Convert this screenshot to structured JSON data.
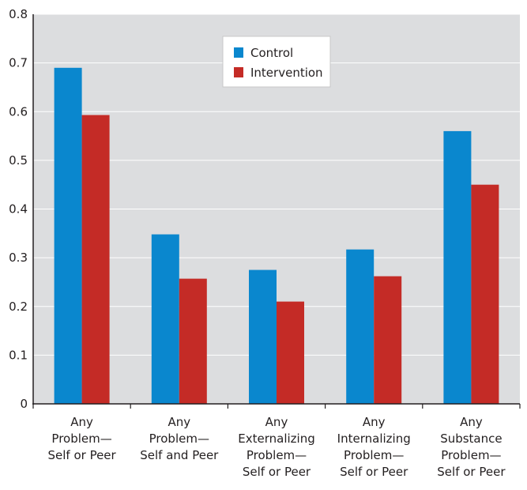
{
  "chart_data": {
    "type": "bar",
    "title": "",
    "xlabel": "",
    "ylabel": "",
    "ylim": [
      0,
      0.8
    ],
    "yticks": [
      "0",
      "0.1",
      "0.2",
      "0.3",
      "0.4",
      "0.5",
      "0.6",
      "0.7",
      "0.8"
    ],
    "grid": true,
    "legend_position": "top-center",
    "categories": [
      [
        "Any",
        "Problem—",
        "Self or Peer"
      ],
      [
        "Any",
        "Problem—",
        "Self and Peer"
      ],
      [
        "Any",
        "Externalizing",
        "Problem—",
        "Self or Peer"
      ],
      [
        "Any",
        "Internalizing",
        "Problem—",
        "Self or Peer"
      ],
      [
        "Any",
        "Substance",
        "Problem—",
        "Self or Peer"
      ]
    ],
    "series": [
      {
        "name": "Control",
        "color": "#0a87ce",
        "values": [
          0.69,
          0.348,
          0.275,
          0.317,
          0.56
        ]
      },
      {
        "name": "Intervention",
        "color": "#c42b26",
        "values": [
          0.593,
          0.257,
          0.21,
          0.262,
          0.45
        ]
      }
    ],
    "colors": {
      "plot_background": "#dcdddf",
      "gridline": "#ffffff",
      "axis": "#231f20"
    }
  }
}
